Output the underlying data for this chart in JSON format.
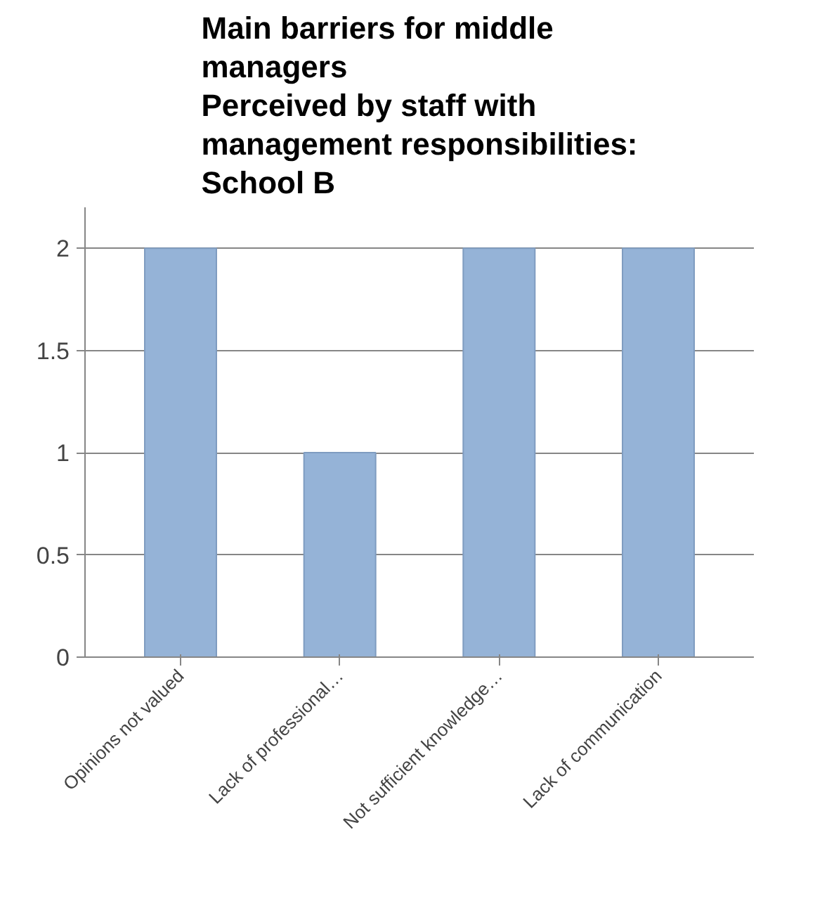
{
  "chart_data": {
    "type": "bar",
    "title": "Main barriers for middle managers\nPerceived by staff with management responsibilities: School B",
    "categories": [
      "Opinions not valued",
      "Lack of professional…",
      "Not sufficient knowledge…",
      "Lack of communication"
    ],
    "values": [
      2,
      1,
      2,
      2
    ],
    "color": "#95b3d7",
    "ylim": [
      0,
      2.2
    ],
    "yticks": [
      0,
      0.5,
      1,
      1.5,
      2
    ],
    "grid": "y"
  }
}
